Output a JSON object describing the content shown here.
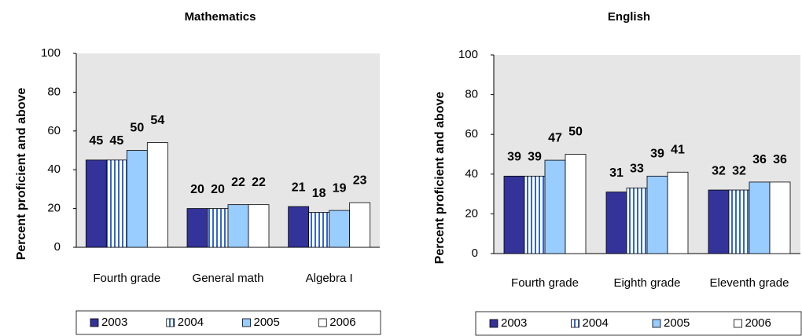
{
  "chart_data": [
    {
      "type": "bar",
      "title": "Mathematics",
      "y_label": "Percent proficient and above",
      "categories": [
        "Fourth grade",
        "General math",
        "Algebra I"
      ],
      "series": [
        {
          "name": "2003",
          "color": "#333399",
          "values": [
            45,
            20,
            21
          ]
        },
        {
          "name": "2004",
          "color": "#3366cc",
          "hatch": "vertical",
          "values": [
            45,
            20,
            18
          ]
        },
        {
          "name": "2005",
          "color": "#99ccff",
          "values": [
            50,
            22,
            19
          ]
        },
        {
          "name": "2006",
          "color": "#ffffff",
          "values": [
            54,
            22,
            23
          ]
        }
      ],
      "ylim": [
        0,
        100
      ],
      "yticks": [
        0,
        20,
        40,
        60,
        80,
        100
      ],
      "grid": false,
      "legend": "bottom"
    },
    {
      "type": "bar",
      "title": "English",
      "y_label": "Percent proficient and above",
      "categories": [
        "Fourth grade",
        "Eighth grade",
        "Eleventh grade"
      ],
      "series": [
        {
          "name": "2003",
          "color": "#333399",
          "values": [
            39,
            31,
            32
          ]
        },
        {
          "name": "2004",
          "color": "#3366cc",
          "hatch": "vertical",
          "values": [
            39,
            33,
            32
          ]
        },
        {
          "name": "2005",
          "color": "#99ccff",
          "values": [
            47,
            39,
            36
          ]
        },
        {
          "name": "2006",
          "color": "#ffffff",
          "values": [
            50,
            41,
            36
          ]
        }
      ],
      "ylim": [
        0,
        100
      ],
      "yticks": [
        0,
        20,
        40,
        60,
        80,
        100
      ],
      "grid": false,
      "legend": "bottom"
    }
  ]
}
